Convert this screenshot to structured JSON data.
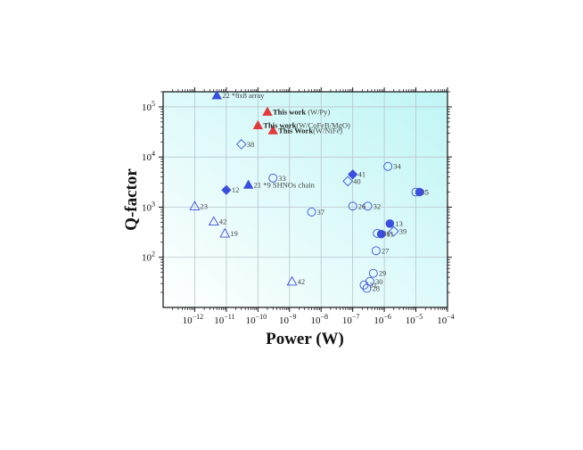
{
  "chart_data": {
    "type": "scatter",
    "xlabel": "Power (W)",
    "ylabel": "Q-factor",
    "xscale": "log",
    "yscale": "log",
    "xlim": [
      1e-13,
      0.0001
    ],
    "ylim": [
      10,
      200000
    ],
    "grid": true,
    "x_ticks": [
      {
        "value": 1e-12,
        "base": "10",
        "exp": "−12"
      },
      {
        "value": 1e-11,
        "base": "10",
        "exp": "−11"
      },
      {
        "value": 1e-10,
        "base": "10",
        "exp": "−10"
      },
      {
        "value": 1e-09,
        "base": "10",
        "exp": "−9"
      },
      {
        "value": 1e-08,
        "base": "10",
        "exp": "−8"
      },
      {
        "value": 1e-07,
        "base": "10",
        "exp": "−7"
      },
      {
        "value": 1e-06,
        "base": "10",
        "exp": "−6"
      },
      {
        "value": 1e-05,
        "base": "10",
        "exp": "−5"
      },
      {
        "value": 0.0001,
        "base": "10",
        "exp": "−4"
      }
    ],
    "y_ticks": [
      {
        "value": 100,
        "base": "10",
        "exp": "2"
      },
      {
        "value": 1000,
        "base": "10",
        "exp": "3"
      },
      {
        "value": 10000,
        "base": "10",
        "exp": "4"
      },
      {
        "value": 100000,
        "base": "10",
        "exp": "5"
      }
    ],
    "colors": {
      "blue": "#3a4fe0",
      "red": "#e23b3b",
      "axis": "#111111",
      "grid": "#b8c4cc",
      "bg_from": "#ffffff",
      "bg_to": "#bff5f5"
    },
    "points": [
      {
        "x": 5e-12,
        "y": 170000,
        "marker": "triangle",
        "fill": "blue",
        "label": "22 *8x8 array",
        "bold": ""
      },
      {
        "x": 2e-10,
        "y": 80000,
        "marker": "triangle",
        "fill": "red",
        "label": " (W/Py)",
        "bold": "This work"
      },
      {
        "x": 1e-10,
        "y": 43000,
        "marker": "triangle",
        "fill": "red",
        "label": "(W/CoFeB/MgO)",
        "bold": "This work"
      },
      {
        "x": 3e-10,
        "y": 34000,
        "marker": "triangle",
        "fill": "red",
        "label": "(W/NiFe)",
        "bold": "This Work"
      },
      {
        "x": 3e-11,
        "y": 18000,
        "marker": "diamond",
        "fill": "none",
        "label": "38",
        "bold": ""
      },
      {
        "x": 5e-11,
        "y": 2800,
        "marker": "triangle",
        "fill": "blue",
        "label": "21 *9 SHNOs chain",
        "bold": ""
      },
      {
        "x": 1e-11,
        "y": 2200,
        "marker": "diamond",
        "fill": "blue",
        "label": "12",
        "bold": ""
      },
      {
        "x": 3e-10,
        "y": 3800,
        "marker": "circle",
        "fill": "none",
        "label": "33",
        "bold": ""
      },
      {
        "x": 1e-12,
        "y": 1050,
        "marker": "triangle",
        "fill": "none",
        "label": "23",
        "bold": ""
      },
      {
        "x": 4e-12,
        "y": 520,
        "marker": "triangle",
        "fill": "none",
        "label": "42",
        "bold": ""
      },
      {
        "x": 9e-12,
        "y": 300,
        "marker": "triangle",
        "fill": "none",
        "label": "19",
        "bold": ""
      },
      {
        "x": 5e-09,
        "y": 800,
        "marker": "circle",
        "fill": "none",
        "label": "37",
        "bold": ""
      },
      {
        "x": 1.2e-09,
        "y": 33,
        "marker": "triangle",
        "fill": "none",
        "label": "42",
        "bold": ""
      },
      {
        "x": 1e-07,
        "y": 4500,
        "marker": "diamond",
        "fill": "blue",
        "label": "41",
        "bold": ""
      },
      {
        "x": 7e-08,
        "y": 3300,
        "marker": "diamond",
        "fill": "none",
        "label": "40",
        "bold": ""
      },
      {
        "x": 1.3e-06,
        "y": 6500,
        "marker": "circle",
        "fill": "none",
        "label": "34",
        "bold": ""
      },
      {
        "x": 1e-07,
        "y": 1050,
        "marker": "circle",
        "fill": "none",
        "label": "26",
        "bold": ""
      },
      {
        "x": 3e-07,
        "y": 1050,
        "marker": "circle",
        "fill": "none",
        "label": "32",
        "bold": ""
      },
      {
        "x": 1e-05,
        "y": 2000,
        "marker": "circle",
        "fill": "none",
        "label": "35",
        "bold": ""
      },
      {
        "x": 1.3e-05,
        "y": 2000,
        "marker": "circle",
        "fill": "blue",
        "label": "5",
        "bold": ""
      },
      {
        "x": 1.5e-06,
        "y": 470,
        "marker": "circle",
        "fill": "blue",
        "label": "13",
        "bold": ""
      },
      {
        "x": 6e-07,
        "y": 300,
        "marker": "circle",
        "fill": "none",
        "label": "36",
        "bold": ""
      },
      {
        "x": 8e-07,
        "y": 290,
        "marker": "circle",
        "fill": "blue",
        "label": "11",
        "bold": ""
      },
      {
        "x": 2e-06,
        "y": 330,
        "marker": "diamond",
        "fill": "none",
        "label": "39",
        "bold": ""
      },
      {
        "x": 5.5e-07,
        "y": 135,
        "marker": "circle",
        "fill": "none",
        "label": "27",
        "bold": ""
      },
      {
        "x": 4.5e-07,
        "y": 48,
        "marker": "circle",
        "fill": "none",
        "label": "29",
        "bold": ""
      },
      {
        "x": 3.5e-07,
        "y": 33,
        "marker": "circle",
        "fill": "none",
        "label": "30",
        "bold": ""
      },
      {
        "x": 2.3e-07,
        "y": 28,
        "marker": "circle",
        "fill": "none",
        "label": "31",
        "bold": ""
      },
      {
        "x": 2.8e-07,
        "y": 24,
        "marker": "circle",
        "fill": "none",
        "label": "28",
        "bold": ""
      }
    ]
  }
}
